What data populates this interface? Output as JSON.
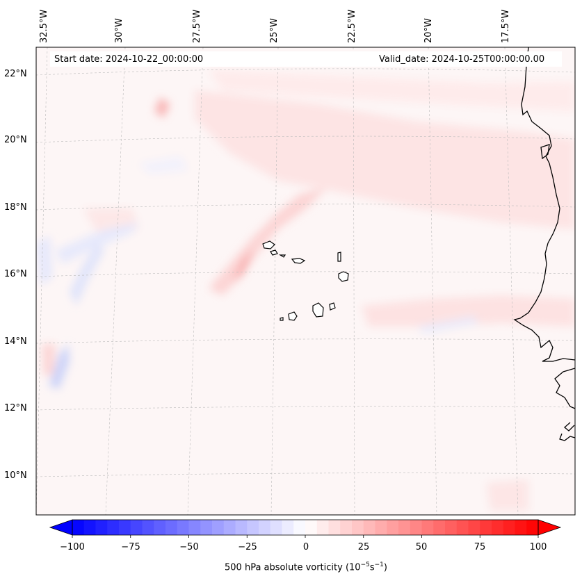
{
  "header": {
    "start_date": "Start date: 2024-10-22_00:00:00",
    "valid_date": "Valid_date: 2024-10-25T00:00:00.00"
  },
  "lon_labels": [
    "32.5°W",
    "30°W",
    "27.5°W",
    "25°W",
    "22.5°W",
    "20°W",
    "17.5°W"
  ],
  "lat_labels": [
    "22°N",
    "20°N",
    "18°N",
    "16°N",
    "14°N",
    "12°N",
    "10°N"
  ],
  "colorbar": {
    "ticks": [
      "−100",
      "−75",
      "−50",
      "−25",
      "0",
      "25",
      "50",
      "75",
      "100"
    ],
    "label": "500 hPa absolute vorticity (10",
    "label_exp1": "−5",
    "label_mid": "s",
    "label_exp2": "−1",
    "label_end": ")",
    "min": -100,
    "max": 100,
    "steps": 40
  },
  "colors": {
    "neg_extreme": "#0000ff",
    "pos_extreme": "#ff0000",
    "background": "#fdf6f6",
    "coastline": "#000000"
  }
}
